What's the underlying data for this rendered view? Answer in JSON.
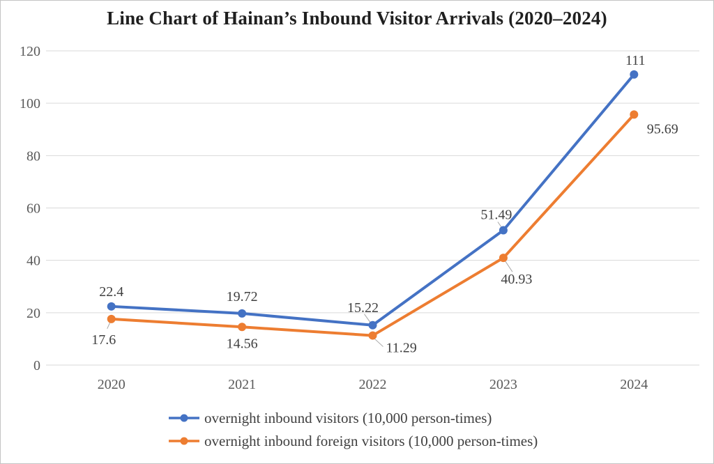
{
  "chart_data": {
    "type": "line",
    "title": "Line Chart of Hainan’s Inbound Visitor Arrivals (2020–2024)",
    "categories": [
      "2020",
      "2021",
      "2022",
      "2023",
      "2024"
    ],
    "series": [
      {
        "name": "overnight inbound visitors (10,000 person-times)",
        "color": "#4472C4",
        "values": [
          22.4,
          19.72,
          15.22,
          51.49,
          111
        ],
        "labels": [
          "22.4",
          "19.72",
          "15.22",
          "51.49",
          "111"
        ]
      },
      {
        "name": "overnight inbound foreign visitors (10,000 person-times)",
        "color": "#ED7D31",
        "values": [
          17.6,
          14.56,
          11.29,
          40.93,
          95.69
        ],
        "labels": [
          "17.6",
          "14.56",
          "11.29",
          "40.93",
          "95.69"
        ]
      }
    ],
    "y_axis": {
      "min": 0,
      "max": 120,
      "step": 20,
      "ticks": [
        "0",
        "20",
        "40",
        "60",
        "80",
        "100",
        "120"
      ]
    },
    "x_axis_label": "",
    "y_axis_label": "",
    "grid": true,
    "legend_position": "bottom",
    "colors": {
      "gridline": "#D9D9D9",
      "tick_label": "#595959",
      "data_label": "#404040",
      "leader_line": "#A6A6A6",
      "title": "#1F1F1F",
      "border": "#C4C4C4",
      "background": "#FFFFFF"
    }
  }
}
